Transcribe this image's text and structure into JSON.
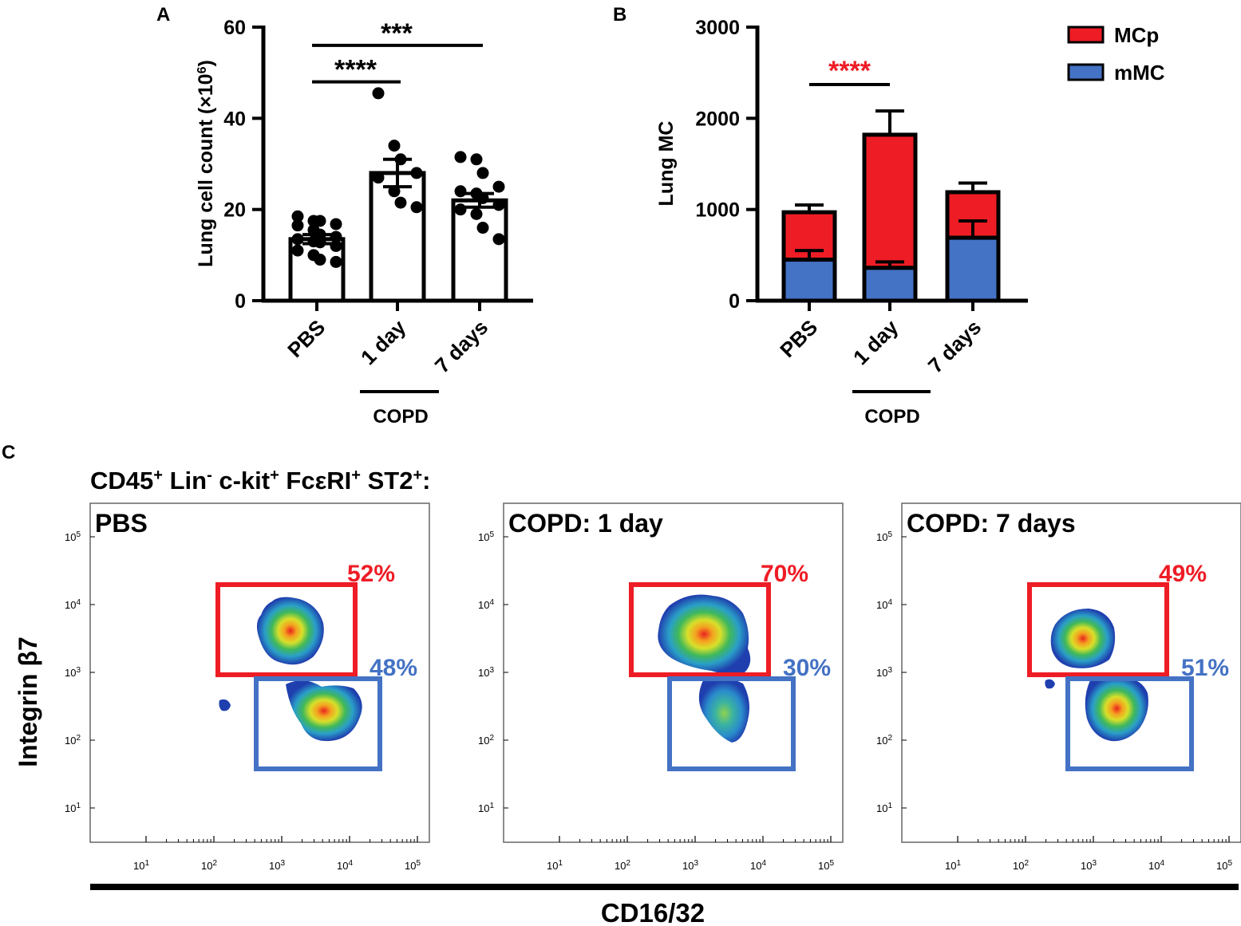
{
  "panelA": {
    "letter": "A",
    "chart_data": {
      "type": "bar",
      "categories": [
        "PBS",
        "1 day",
        "7 days"
      ],
      "values": [
        13.5,
        28,
        22
      ],
      "errors": [
        1.0,
        3.0,
        1.5
      ],
      "points": [
        [
          18.5,
          17.5,
          17.5,
          16.8,
          16.5,
          15.5,
          14.5,
          14,
          13.5,
          13,
          12.8,
          12,
          11,
          10,
          9,
          8.5
        ],
        [
          45.5,
          34,
          31,
          28,
          27,
          24,
          21.5,
          20.5
        ],
        [
          31.5,
          31,
          28,
          25,
          24,
          23.5,
          22.5,
          21,
          20,
          19,
          16,
          13.5
        ]
      ],
      "ylim": [
        0,
        60
      ],
      "yticks": [
        0,
        20,
        40,
        60
      ],
      "ytick_labels": [
        "0",
        "20",
        "40",
        "60"
      ],
      "ylabel_prefix": "Lung cell count (×10",
      "ylabel_sup": "6",
      "ylabel_suffix": ")",
      "significance": [
        {
          "from": "PBS",
          "to": "1 day",
          "y": 48,
          "label": "****"
        },
        {
          "from": "PBS",
          "to": "7 days",
          "y": 56,
          "label": "***"
        }
      ],
      "group_label": "COPD"
    }
  },
  "panelB": {
    "letter": "B",
    "chart_data": {
      "type": "bar",
      "stacked": true,
      "categories": [
        "PBS",
        "1 day",
        "7 days"
      ],
      "series": [
        {
          "name": "mMC",
          "values": [
            450,
            360,
            690
          ],
          "errors": [
            100,
            65,
            185
          ],
          "color": "#4472C4"
        },
        {
          "name": "MCp",
          "values": [
            520,
            1460,
            500
          ],
          "errors": [
            80,
            260,
            100
          ],
          "color": "#EE1C25"
        }
      ],
      "ylim": [
        0,
        3000
      ],
      "yticks": [
        0,
        1000,
        2000,
        3000
      ],
      "ytick_labels": [
        "0",
        "1000",
        "2000",
        "3000"
      ],
      "ylabel": "Lung MC",
      "legend": [
        {
          "label": "MCp",
          "color": "#EE1C25"
        },
        {
          "label": "mMC",
          "color": "#4472C4"
        }
      ],
      "significance": [
        {
          "from": "PBS",
          "to": "1 day",
          "y": 2370,
          "label": "****",
          "color": "#EE1C25"
        }
      ],
      "group_label": "COPD"
    }
  },
  "panelC": {
    "letter": "C",
    "title": {
      "parts": [
        {
          "t": "CD45",
          "s": "+"
        },
        {
          "t": " Lin",
          "s": "-"
        },
        {
          "t": " c-kit",
          "s": "+"
        },
        {
          "t": " FcεRI",
          "s": "+"
        },
        {
          "t": " ST2",
          "s": "+"
        },
        {
          "t": ":",
          "s": ""
        }
      ]
    },
    "ylabel": "Integrin β7",
    "xlabel": "CD16/32",
    "tick_base": "10",
    "tick_exponents": [
      "1",
      "2",
      "3",
      "4",
      "5"
    ],
    "plots": [
      {
        "title": "PBS",
        "upper_gate_pct": "52%",
        "lower_gate_pct": "48%"
      },
      {
        "title": "COPD: 1 day",
        "upper_gate_pct": "70%",
        "lower_gate_pct": "30%"
      },
      {
        "title": "COPD: 7 days",
        "upper_gate_pct": "49%",
        "lower_gate_pct": "51%"
      }
    ],
    "gate_colors": {
      "upper": "#EE1C25",
      "lower": "#4472C4"
    }
  }
}
